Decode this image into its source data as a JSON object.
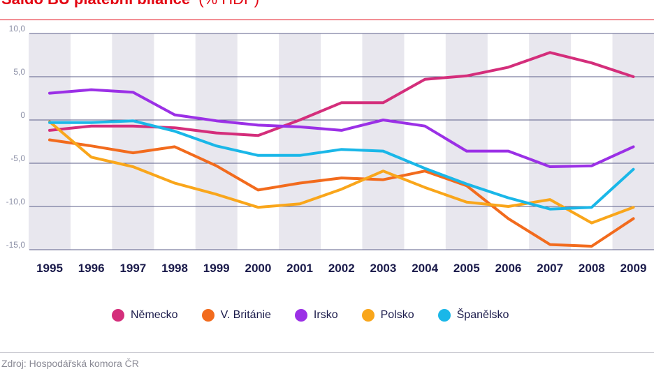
{
  "header": {
    "title": "Saldo BÚ platební bilance",
    "subtitle": "(% HDP)"
  },
  "source": "Zdroj: Hospodářská komora ČR",
  "chart_data": {
    "type": "line",
    "x": [
      1995,
      1996,
      1997,
      1998,
      1999,
      2000,
      2001,
      2002,
      2003,
      2004,
      2005,
      2006,
      2007,
      2008,
      2009
    ],
    "x_tick_labels": [
      "1995",
      "1996",
      "1997",
      "1998",
      "1999",
      "2000",
      "2001",
      "2002",
      "2003",
      "2004",
      "2005",
      "2006",
      "2007",
      "2008",
      "2009"
    ],
    "y_ticks": [
      10,
      5,
      0,
      -5,
      -10,
      -15
    ],
    "y_tick_labels": [
      "10,0",
      "5,0",
      "0",
      "-5,0",
      "-10,0",
      "-15,0"
    ],
    "ylim": [
      -15,
      10
    ],
    "grid": "horizontal",
    "legend_position": "bottom",
    "series": [
      {
        "name": "Německo",
        "color": "#d42e7b",
        "values": [
          -1.2,
          -0.7,
          -0.7,
          -0.9,
          -1.5,
          -1.8,
          0.0,
          2.0,
          2.0,
          4.7,
          5.1,
          6.1,
          7.8,
          6.6,
          5.0
        ]
      },
      {
        "name": "V. Británie",
        "color": "#f26b1d",
        "values": [
          -2.3,
          -3.0,
          -3.8,
          -3.1,
          -5.3,
          -8.1,
          -7.3,
          -6.7,
          -6.9,
          -5.9,
          -7.6,
          -11.4,
          -14.4,
          -14.6,
          -11.4
        ]
      },
      {
        "name": "Irsko",
        "color": "#9b30e6",
        "values": [
          3.1,
          3.5,
          3.2,
          0.6,
          -0.1,
          -0.6,
          -0.8,
          -1.2,
          0.0,
          -0.7,
          -3.6,
          -3.6,
          -5.4,
          -5.3,
          -3.1
        ]
      },
      {
        "name": "Polsko",
        "color": "#f9a61b",
        "values": [
          -0.2,
          -4.3,
          -5.4,
          -7.3,
          -8.6,
          -10.1,
          -9.7,
          -8.0,
          -5.9,
          -7.8,
          -9.5,
          -10.0,
          -9.2,
          -11.9,
          -10.1
        ]
      },
      {
        "name": "Španělsko",
        "color": "#1ab7e8",
        "values": [
          -0.3,
          -0.3,
          -0.1,
          -1.3,
          -3.0,
          -4.1,
          -4.1,
          -3.4,
          -3.6,
          -5.6,
          -7.4,
          -9.0,
          -10.3,
          -10.1,
          -5.7
        ]
      }
    ]
  }
}
